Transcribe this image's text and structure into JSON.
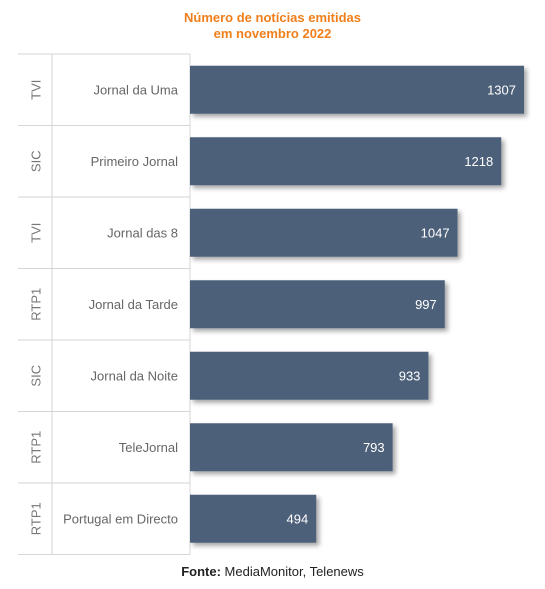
{
  "chart_data": {
    "type": "bar",
    "orientation": "horizontal",
    "title_lines": [
      "Número de notícias emitidas",
      "em novembro 2022"
    ],
    "categories": [
      {
        "channel": "TVI",
        "program": "Jornal da Uma",
        "value": 1307
      },
      {
        "channel": "SIC",
        "program": "Primeiro Jornal",
        "value": 1218
      },
      {
        "channel": "TVI",
        "program": "Jornal das 8",
        "value": 1047
      },
      {
        "channel": "RTP1",
        "program": "Jornal da Tarde",
        "value": 997
      },
      {
        "channel": "SIC",
        "program": "Jornal da Noite",
        "value": 933
      },
      {
        "channel": "RTP1",
        "program": "TeleJornal",
        "value": 793
      },
      {
        "channel": "RTP1",
        "program": "Portugal em Directo",
        "value": 494
      }
    ],
    "xlim": [
      0,
      1307
    ],
    "bar_color": "#4d6179",
    "label_color": "#ffffff",
    "grid": false,
    "legend": "none"
  },
  "source": {
    "label": "Fonte:",
    "text": " MediaMonitor, Telenews"
  }
}
